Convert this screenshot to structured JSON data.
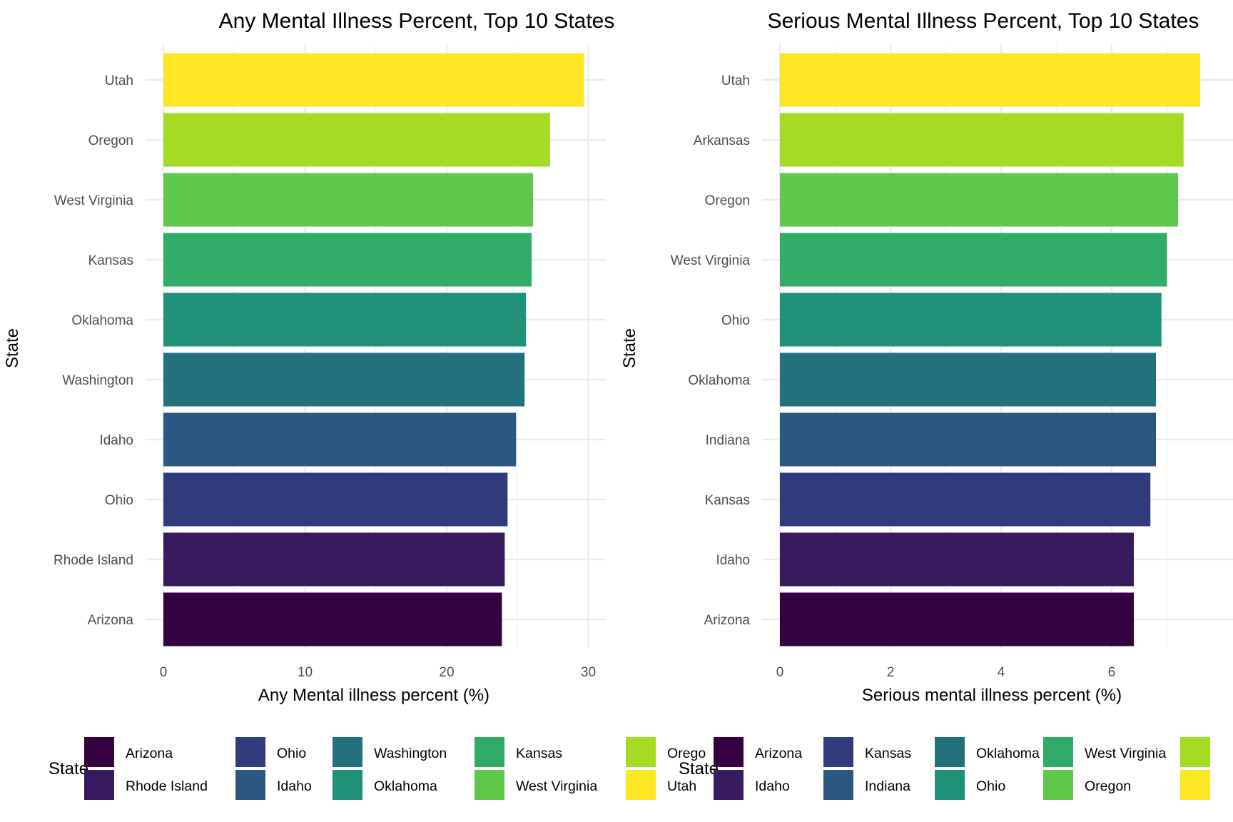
{
  "chart_data": [
    {
      "type": "bar",
      "orientation": "horizontal",
      "title": "Any Mental Illness Percent, Top 10 States",
      "xlabel": "Any Mental illness percent (%)",
      "ylabel": "State",
      "xlim": [
        0,
        31.2
      ],
      "x_ticks": [
        "0",
        "10",
        "20",
        "30"
      ],
      "x_tick_values": [
        0,
        10,
        20,
        30
      ],
      "categories": [
        "Utah",
        "Oregon",
        "West Virginia",
        "Kansas",
        "Oklahoma",
        "Washington",
        "Idaho",
        "Ohio",
        "Rhode Island",
        "Arizona"
      ],
      "values": [
        29.7,
        27.3,
        26.1,
        26.0,
        25.6,
        25.5,
        24.9,
        24.3,
        24.1,
        23.9
      ],
      "colors": [
        "#FDE725",
        "#A6DB23",
        "#5EC84A",
        "#31AC68",
        "#1F9178",
        "#24717E",
        "#2B5780",
        "#313A7B",
        "#381A5F",
        "#330140"
      ],
      "grid": true,
      "legend": {
        "position": "bottom",
        "title": "State",
        "entries": [
          {
            "label": "Arizona",
            "color": "#330140"
          },
          {
            "label": "Rhode Island",
            "color": "#381A5F"
          },
          {
            "label": "Ohio",
            "color": "#313A7B"
          },
          {
            "label": "Idaho",
            "color": "#2B5780"
          },
          {
            "label": "Washington",
            "color": "#24717E"
          },
          {
            "label": "Oklahoma",
            "color": "#1F9178"
          },
          {
            "label": "Kansas",
            "color": "#31AC68"
          },
          {
            "label": "West Virginia",
            "color": "#5EC84A"
          },
          {
            "label": "Orego",
            "color": "#A6DB23"
          },
          {
            "label": "Utah",
            "color": "#FDE725"
          }
        ]
      }
    },
    {
      "type": "bar",
      "orientation": "horizontal",
      "title": "Serious Mental Illness Percent, Top 10 States",
      "xlabel": "Serious mental illness percent (%)",
      "ylabel": "State",
      "xlim": [
        0,
        7.96
      ],
      "x_ticks": [
        "0",
        "2",
        "4",
        "6"
      ],
      "x_tick_values": [
        0,
        2,
        4,
        6
      ],
      "categories": [
        "Utah",
        "Arkansas",
        "Oregon",
        "West Virginia",
        "Ohio",
        "Oklahoma",
        "Indiana",
        "Kansas",
        "Idaho",
        "Arizona"
      ],
      "values": [
        7.6,
        7.3,
        7.2,
        7.0,
        6.9,
        6.8,
        6.8,
        6.7,
        6.4,
        6.4
      ],
      "colors": [
        "#FDE725",
        "#A6DB23",
        "#5EC84A",
        "#31AC68",
        "#1F9178",
        "#24717E",
        "#2B5780",
        "#313A7B",
        "#381A5F",
        "#330140"
      ],
      "grid": true,
      "legend": {
        "position": "bottom",
        "title": "State",
        "entries": [
          {
            "label": "Arizona",
            "color": "#330140"
          },
          {
            "label": "Idaho",
            "color": "#381A5F"
          },
          {
            "label": "Kansas",
            "color": "#313A7B"
          },
          {
            "label": "Indiana",
            "color": "#2B5780"
          },
          {
            "label": "Oklahoma",
            "color": "#24717E"
          },
          {
            "label": "Ohio",
            "color": "#1F9178"
          },
          {
            "label": "West Virginia",
            "color": "#31AC68"
          },
          {
            "label": "Oregon",
            "color": "#5EC84A"
          },
          {
            "label": "",
            "color": "#A6DB23"
          },
          {
            "label": "",
            "color": "#FDE725"
          }
        ]
      }
    }
  ]
}
